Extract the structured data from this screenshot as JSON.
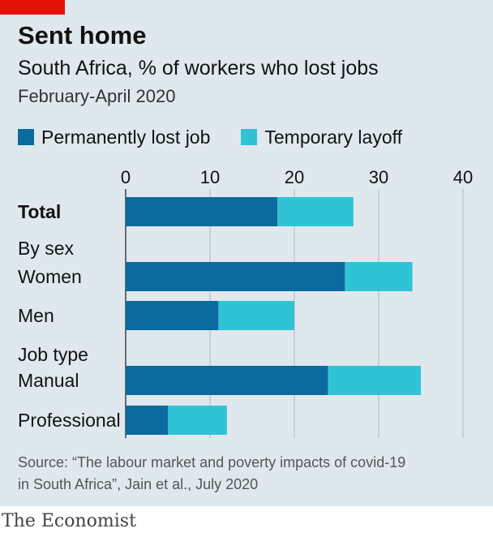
{
  "header": {
    "title": "Sent home",
    "subtitle": "South Africa, % of workers who lost jobs",
    "period": "February-April 2020"
  },
  "colors": {
    "tag": "#e3120b",
    "permanent": "#0b6b9e",
    "temporary": "#30c3d6",
    "grid": "#b4bfc6",
    "background": "#dfe8ed"
  },
  "chart_data": {
    "type": "bar",
    "orientation": "horizontal",
    "stacked": true,
    "xlim": [
      0,
      40
    ],
    "ticks": [
      "0",
      "10",
      "20",
      "30",
      "40"
    ],
    "tick_values": [
      0,
      10,
      20,
      30,
      40
    ],
    "groups": [
      "By sex",
      "Job type"
    ],
    "categories": [
      "Total",
      "Women",
      "Men",
      "Manual",
      "Professional"
    ],
    "series": [
      {
        "name": "Permanently lost job",
        "values": [
          18,
          26,
          11,
          24,
          5
        ]
      },
      {
        "name": "Temporary layoff",
        "values": [
          9,
          8,
          9,
          11,
          7
        ]
      }
    ],
    "legend": "top-left",
    "grid": true
  },
  "footer": {
    "source_line1": "Source: “The labour market and poverty impacts of covid-19",
    "source_line2": "in South Africa”, Jain et al., July 2020",
    "brand": "The Economist"
  }
}
